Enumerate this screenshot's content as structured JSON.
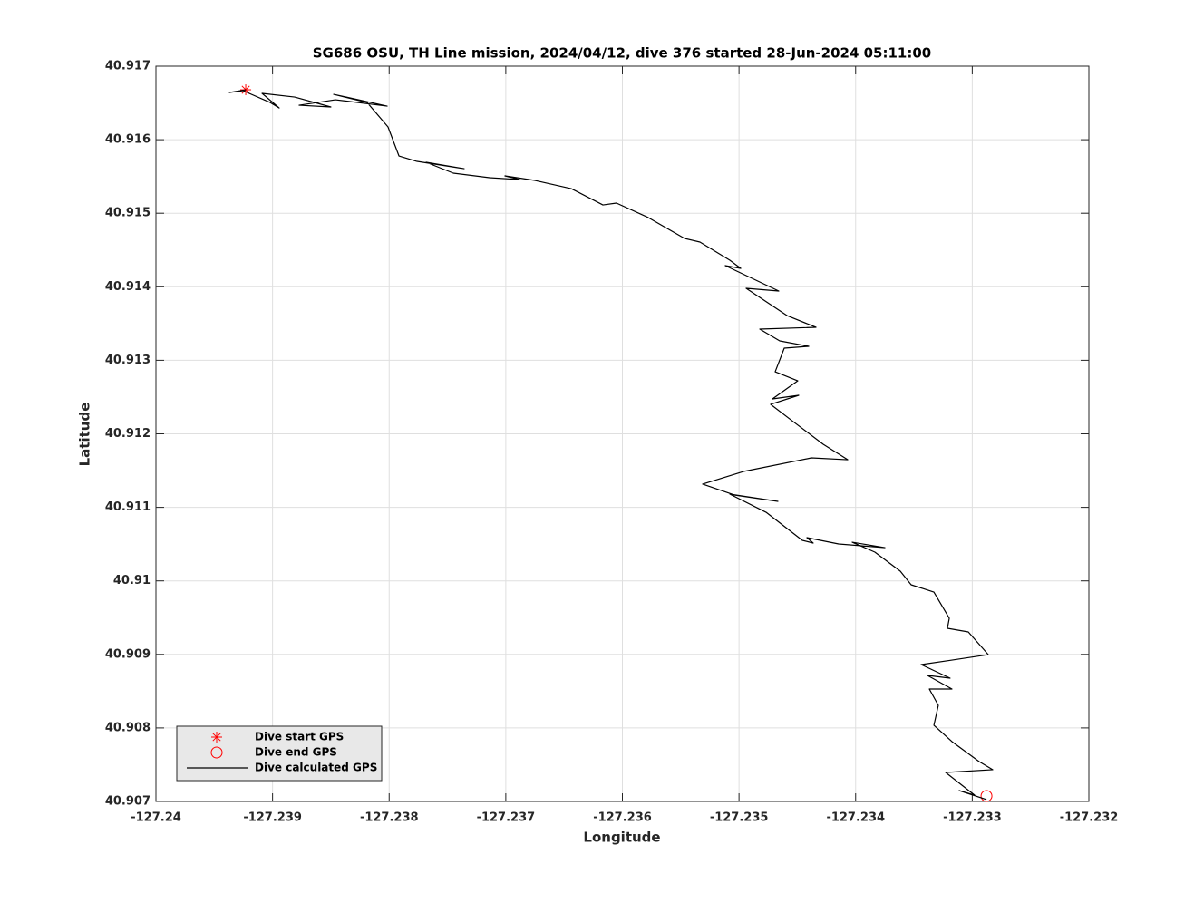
{
  "chart_data": {
    "type": "line",
    "title": "SG686 OSU, TH Line mission, 2024/04/12, dive 376 started 28-Jun-2024 05:11:00",
    "xlabel": "Longitude",
    "ylabel": "Latitude",
    "xlim": [
      -127.24,
      -127.232
    ],
    "ylim": [
      40.907,
      40.917
    ],
    "xticks": [
      -127.24,
      -127.239,
      -127.238,
      -127.237,
      -127.236,
      -127.235,
      -127.234,
      -127.233,
      -127.232
    ],
    "yticks": [
      40.907,
      40.908,
      40.909,
      40.91,
      40.911,
      40.912,
      40.913,
      40.914,
      40.915,
      40.916,
      40.917
    ],
    "grid": true,
    "legend": "lower left",
    "series": [
      {
        "name": "Dive start GPS",
        "color": "#ff0000",
        "marker": "star",
        "x": [
          -127.23923
        ],
        "values": [
          40.916679
        ]
      },
      {
        "name": "Dive end GPS",
        "color": "#ff0000",
        "marker": "circle",
        "x": [
          -127.232878
        ],
        "values": [
          40.907074
        ]
      },
      {
        "name": "Dive calculated GPS",
        "color": "#000000",
        "x": [
          -127.23923,
          -127.23937,
          -127.239254,
          -127.23902,
          -127.238943,
          -127.23909,
          -127.23881,
          -127.2385,
          -127.238772,
          -127.238461,
          -127.238017,
          -127.238476,
          -127.238189,
          -127.23801,
          -127.237916,
          -127.237761,
          -127.237357,
          -127.237683,
          -127.23745,
          -127.237139,
          -127.236882,
          -127.237007,
          -127.23675,
          -127.236439,
          -127.236167,
          -127.236051,
          -127.235778,
          -127.235467,
          -127.235335,
          -127.235079,
          -127.234985,
          -127.235118,
          -127.234659,
          -127.234939,
          -127.234589,
          -127.23434,
          -127.234822,
          -127.234651,
          -127.234402,
          -127.234612,
          -127.23469,
          -127.234496,
          -127.234713,
          -127.234488,
          -127.234729,
          -127.234535,
          -127.234278,
          -127.234068,
          -127.234379,
          -127.234962,
          -127.235312,
          -127.23504,
          -127.234667,
          -127.235079,
          -127.234768,
          -127.234457,
          -127.234364,
          -127.234418,
          -127.234146,
          -127.233749,
          -127.234029,
          -127.233835,
          -127.233617,
          -127.233524,
          -127.233329,
          -127.233197,
          -127.233213,
          -127.233034,
          -127.232863,
          -127.233174,
          -127.233438,
          -127.23319,
          -127.233384,
          -127.233174,
          -127.233368,
          -127.233291,
          -127.233329,
          -127.233174,
          -127.232941,
          -127.232824,
          -127.233228,
          -127.23298,
          -127.233112,
          -127.232878
        ],
        "values": [
          40.916679,
          40.916642,
          40.916667,
          40.916506,
          40.916432,
          40.91663,
          40.91658,
          40.916445,
          40.916469,
          40.916543,
          40.916457,
          40.916617,
          40.916506,
          40.916174,
          40.915779,
          40.915705,
          40.915606,
          40.915693,
          40.915545,
          40.915483,
          40.915458,
          40.915508,
          40.915446,
          40.915335,
          40.915113,
          40.915138,
          40.914941,
          40.914657,
          40.914608,
          40.914361,
          40.91425,
          40.914287,
          40.913942,
          40.913979,
          40.913609,
          40.913449,
          40.913424,
          40.913264,
          40.91319,
          40.913165,
          40.912844,
          40.912721,
          40.912475,
          40.912524,
          40.912401,
          40.912166,
          40.911858,
          40.911648,
          40.911673,
          40.911488,
          40.911316,
          40.911168,
          40.911081,
          40.91118,
          40.910933,
          40.910551,
          40.910514,
          40.910588,
          40.910502,
          40.910452,
          40.910526,
          40.910391,
          40.910132,
          40.909947,
          40.909848,
          40.909491,
          40.909355,
          40.909306,
          40.908997,
          40.908923,
          40.908862,
          40.908677,
          40.908714,
          40.908529,
          40.908529,
          40.908307,
          40.908036,
          40.907814,
          40.907543,
          40.907432,
          40.907395,
          40.907086,
          40.907148,
          40.907025
        ]
      }
    ]
  }
}
